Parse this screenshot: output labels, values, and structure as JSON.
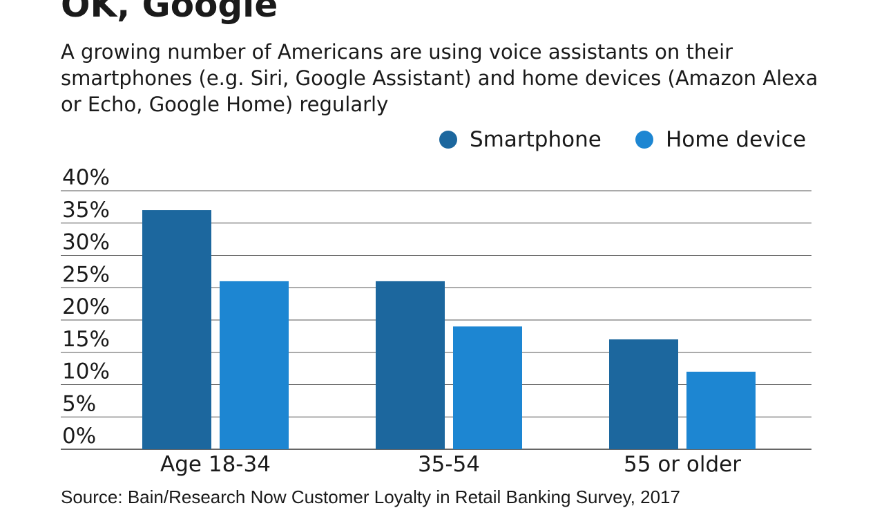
{
  "title": "OK, Google",
  "subtitle": "A growing number of Americans are using voice assistants on their smartphones (e.g. Siri, Google Assistant) and home devices (Amazon Alexa or Echo, Google Home) regularly",
  "source": "Source: Bain/Research Now Customer Loyalty in Retail Banking Survey, 2017",
  "chart_data": {
    "type": "bar",
    "title": "OK, Google",
    "xlabel": "",
    "ylabel": "",
    "categories": [
      "Age 18-34",
      "35-54",
      "55 or older"
    ],
    "series": [
      {
        "name": "Smartphone",
        "color": "#1c679e",
        "values": [
          37,
          26,
          17
        ]
      },
      {
        "name": "Home device",
        "color": "#1d86d2",
        "values": [
          26,
          19,
          12
        ]
      }
    ],
    "ylim": [
      0,
      40
    ],
    "yticks": [
      "0%",
      "5%",
      "10%",
      "15%",
      "20%",
      "25%",
      "30%",
      "35%",
      "40%"
    ],
    "grid": true,
    "legend_position": "top-right"
  }
}
